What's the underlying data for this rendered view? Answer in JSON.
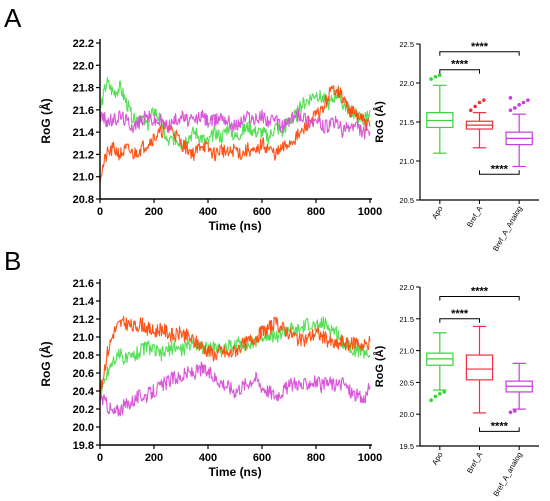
{
  "colors": {
    "Apo": "#4ddd4d",
    "Bref_A": "#ff4a0c",
    "Bref_A_Analog": "#d64fd6",
    "box_Apo": "#37d437",
    "box_Bref_A": "#f0303c",
    "box_Bref_A_Analog": "#c83ce0"
  },
  "chart_data": [
    {
      "panel": "A",
      "type": "line",
      "xlabel": "Time (ns)",
      "ylabel": "RoG (Å)",
      "xlim": [
        0,
        1000
      ],
      "ylim": [
        20.8,
        22.2
      ],
      "xticks": [
        "0",
        "200",
        "400",
        "600",
        "800",
        "1000"
      ],
      "yticks": [
        "20.8",
        "21.0",
        "21.2",
        "21.4",
        "21.6",
        "21.8",
        "22.0",
        "22.2"
      ],
      "series": [
        {
          "key": "Apo",
          "x": [
            0,
            25,
            50,
            75,
            100,
            125,
            150,
            175,
            200,
            225,
            250,
            275,
            300,
            325,
            350,
            375,
            400,
            425,
            450,
            475,
            500,
            525,
            550,
            575,
            600,
            625,
            650,
            675,
            700,
            725,
            750,
            775,
            800,
            825,
            850,
            875,
            900,
            925,
            950,
            975,
            1000
          ],
          "values": [
            21.6,
            21.85,
            21.75,
            21.8,
            21.65,
            21.5,
            21.55,
            21.45,
            21.6,
            21.5,
            21.3,
            21.35,
            21.3,
            21.35,
            21.4,
            21.35,
            21.3,
            21.4,
            21.35,
            21.45,
            21.35,
            21.4,
            21.45,
            21.4,
            21.4,
            21.35,
            21.45,
            21.4,
            21.5,
            21.55,
            21.65,
            21.7,
            21.75,
            21.7,
            21.65,
            21.75,
            21.65,
            21.6,
            21.55,
            21.5,
            21.6
          ]
        },
        {
          "key": "Bref_A",
          "x": [
            0,
            25,
            50,
            75,
            100,
            125,
            150,
            175,
            200,
            225,
            250,
            275,
            300,
            325,
            350,
            375,
            400,
            425,
            450,
            475,
            500,
            525,
            550,
            575,
            600,
            625,
            650,
            675,
            700,
            725,
            750,
            775,
            800,
            825,
            850,
            875,
            900,
            925,
            950,
            975,
            1000
          ],
          "values": [
            21.0,
            21.2,
            21.25,
            21.2,
            21.25,
            21.2,
            21.25,
            21.3,
            21.35,
            21.4,
            21.45,
            21.4,
            21.3,
            21.25,
            21.2,
            21.3,
            21.25,
            21.2,
            21.25,
            21.2,
            21.25,
            21.2,
            21.25,
            21.2,
            21.3,
            21.25,
            21.2,
            21.25,
            21.3,
            21.35,
            21.4,
            21.5,
            21.55,
            21.6,
            21.75,
            21.8,
            21.7,
            21.6,
            21.55,
            21.5,
            21.45
          ]
        },
        {
          "key": "Bref_A_Analog",
          "x": [
            0,
            25,
            50,
            75,
            100,
            125,
            150,
            175,
            200,
            225,
            250,
            275,
            300,
            325,
            350,
            375,
            400,
            425,
            450,
            475,
            500,
            525,
            550,
            575,
            600,
            625,
            650,
            675,
            700,
            725,
            750,
            775,
            800,
            825,
            850,
            875,
            900,
            925,
            950,
            975,
            1000
          ],
          "values": [
            21.55,
            21.5,
            21.5,
            21.55,
            21.5,
            21.45,
            21.5,
            21.55,
            21.5,
            21.5,
            21.45,
            21.5,
            21.55,
            21.5,
            21.5,
            21.55,
            21.5,
            21.5,
            21.55,
            21.5,
            21.45,
            21.5,
            21.55,
            21.5,
            21.55,
            21.5,
            21.5,
            21.45,
            21.5,
            21.55,
            21.55,
            21.5,
            21.5,
            21.45,
            21.45,
            21.5,
            21.4,
            21.45,
            21.45,
            21.4,
            21.4
          ]
        }
      ]
    },
    {
      "panel": "A-box",
      "type": "box",
      "ylabel": "RoG (Å)",
      "ylim": [
        20.5,
        22.5
      ],
      "yticks": [
        "20.5",
        "21.0",
        "21.5",
        "22.0",
        "22.5"
      ],
      "categories": [
        "Apo",
        "Bref_A",
        "Bref_A_Analog"
      ],
      "boxes": [
        {
          "key": "Apo",
          "min": 21.1,
          "q1": 21.43,
          "median": 21.52,
          "q3": 21.62,
          "max": 21.97,
          "outliers": [
            22.05,
            22.08,
            22.1
          ]
        },
        {
          "key": "Bref_A",
          "min": 21.17,
          "q1": 21.41,
          "median": 21.46,
          "q3": 21.51,
          "max": 21.62,
          "outliers": [
            21.65,
            21.7,
            21.75,
            21.78
          ]
        },
        {
          "key": "Bref_A_Analog",
          "min": 20.93,
          "q1": 21.21,
          "median": 21.29,
          "q3": 21.37,
          "max": 21.6,
          "outliers": [
            21.65,
            21.68,
            21.72,
            21.75,
            21.78,
            21.81
          ]
        }
      ],
      "significance": [
        {
          "from": 0,
          "to": 2,
          "label": "****",
          "y": 22.4
        },
        {
          "from": 0,
          "to": 1,
          "label": "****",
          "y": 22.17
        },
        {
          "from": 1,
          "to": 2,
          "label": "****",
          "y": 20.83,
          "below": true
        }
      ]
    },
    {
      "panel": "B",
      "type": "line",
      "xlabel": "Time (ns)",
      "ylabel": "RoG (Å)",
      "xlim": [
        0,
        1000
      ],
      "ylim": [
        19.8,
        21.6
      ],
      "xticks": [
        "0",
        "200",
        "400",
        "600",
        "800",
        "1000"
      ],
      "yticks": [
        "19.8",
        "20.0",
        "20.2",
        "20.4",
        "20.6",
        "20.8",
        "21.0",
        "21.2",
        "21.4",
        "21.6"
      ],
      "series": [
        {
          "key": "Apo",
          "x": [
            0,
            25,
            50,
            75,
            100,
            125,
            150,
            175,
            200,
            225,
            250,
            275,
            300,
            325,
            350,
            375,
            400,
            425,
            450,
            475,
            500,
            525,
            550,
            575,
            600,
            625,
            650,
            675,
            700,
            725,
            750,
            775,
            800,
            825,
            850,
            875,
            900,
            925,
            950,
            975,
            1000
          ],
          "values": [
            20.3,
            20.6,
            20.75,
            20.8,
            20.75,
            20.8,
            20.85,
            20.9,
            20.85,
            20.8,
            20.85,
            20.9,
            20.85,
            20.9,
            20.95,
            20.9,
            20.85,
            20.9,
            20.85,
            20.9,
            20.9,
            20.95,
            20.9,
            20.95,
            21.0,
            21.05,
            21.0,
            21.05,
            21.1,
            21.05,
            21.1,
            21.15,
            21.1,
            21.15,
            21.1,
            21.05,
            20.95,
            20.9,
            20.85,
            20.85,
            20.8
          ]
        },
        {
          "key": "Bref_A",
          "x": [
            0,
            25,
            50,
            75,
            100,
            125,
            150,
            175,
            200,
            225,
            250,
            275,
            300,
            325,
            350,
            375,
            400,
            425,
            450,
            475,
            500,
            525,
            550,
            575,
            600,
            625,
            650,
            675,
            700,
            725,
            750,
            775,
            800,
            825,
            850,
            875,
            900,
            925,
            950,
            975,
            1000
          ],
          "values": [
            20.35,
            20.8,
            21.05,
            21.15,
            21.15,
            21.1,
            21.15,
            21.1,
            21.05,
            21.1,
            21.05,
            21.0,
            21.05,
            21.0,
            20.95,
            20.9,
            20.85,
            20.8,
            20.85,
            20.8,
            20.85,
            20.9,
            20.95,
            21.0,
            21.05,
            21.1,
            21.15,
            21.1,
            21.05,
            21.0,
            20.95,
            21.0,
            21.05,
            21.0,
            20.95,
            20.9,
            20.95,
            20.9,
            20.95,
            20.9,
            20.95
          ]
        },
        {
          "key": "Bref_A_Analog",
          "x": [
            0,
            25,
            50,
            75,
            100,
            125,
            150,
            175,
            200,
            225,
            250,
            275,
            300,
            325,
            350,
            375,
            400,
            425,
            450,
            475,
            500,
            525,
            550,
            575,
            600,
            625,
            650,
            675,
            700,
            725,
            750,
            775,
            800,
            825,
            850,
            875,
            900,
            925,
            950,
            975,
            1000
          ],
          "values": [
            20.35,
            20.25,
            20.15,
            20.2,
            20.25,
            20.3,
            20.35,
            20.35,
            20.4,
            20.45,
            20.5,
            20.55,
            20.55,
            20.6,
            20.6,
            20.65,
            20.6,
            20.55,
            20.5,
            20.45,
            20.4,
            20.45,
            20.5,
            20.55,
            20.45,
            20.4,
            20.35,
            20.4,
            20.45,
            20.5,
            20.45,
            20.5,
            20.5,
            20.45,
            20.5,
            20.45,
            20.5,
            20.4,
            20.35,
            20.3,
            20.45
          ]
        }
      ]
    },
    {
      "panel": "B-box",
      "type": "box",
      "ylabel": "RoG (Å)",
      "ylim": [
        19.5,
        22.0
      ],
      "yticks": [
        "19.5",
        "20.0",
        "20.5",
        "21.0",
        "21.5",
        "22.0"
      ],
      "categories": [
        "Apo",
        "Bref_A",
        "Bref_A_analog"
      ],
      "boxes": [
        {
          "key": "Apo",
          "min": 20.38,
          "q1": 20.77,
          "median": 20.87,
          "q3": 20.96,
          "max": 21.28,
          "outliers": [
            20.22,
            20.28,
            20.32,
            20.35
          ]
        },
        {
          "key": "Bref_A",
          "min": 20.02,
          "q1": 20.54,
          "median": 20.71,
          "q3": 20.93,
          "max": 21.38,
          "outliers": []
        },
        {
          "key": "Bref_A_Analog",
          "min": 20.08,
          "q1": 20.35,
          "median": 20.44,
          "q3": 20.52,
          "max": 20.8,
          "outliers": [
            20.03,
            20.05
          ]
        }
      ],
      "significance": [
        {
          "from": 0,
          "to": 2,
          "label": "****",
          "y": 21.85
        },
        {
          "from": 0,
          "to": 1,
          "label": "****",
          "y": 21.5
        },
        {
          "from": 1,
          "to": 2,
          "label": "****",
          "y": 19.73,
          "below": true
        }
      ]
    }
  ],
  "panel_labels": [
    "A",
    "B"
  ]
}
